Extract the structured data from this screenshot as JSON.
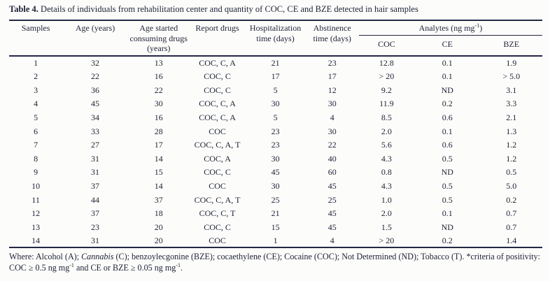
{
  "title": {
    "label": "Table 4.",
    "text": " Details of individuals from rehabilitation center and quantity of COC, CE and BZE detected in hair samples"
  },
  "table": {
    "headers": {
      "samples": "Samples",
      "age": "Age (years)",
      "age_started": "Age started consuming drugs (years)",
      "report_drugs": "Report drugs",
      "hospitalization": "Hospitalization time (days)",
      "abstinence": "Abstinence time (days)",
      "analytes_group_prefix": "Analytes (ng mg",
      "analytes_sup": "-1",
      "analytes_group_suffix": ")",
      "coc": "COC",
      "ce": "CE",
      "bze": "BZE"
    },
    "rows": [
      [
        "1",
        "32",
        "13",
        "COC, C, A",
        "21",
        "23",
        "12.8",
        "0.1",
        "1.9"
      ],
      [
        "2",
        "22",
        "16",
        "COC, C",
        "17",
        "17",
        "> 20",
        "0.1",
        "> 5.0"
      ],
      [
        "3",
        "36",
        "22",
        "COC, C",
        "5",
        "12",
        "9.2",
        "ND",
        "3.1"
      ],
      [
        "4",
        "45",
        "30",
        "COC, C, A",
        "30",
        "30",
        "11.9",
        "0.2",
        "3.3"
      ],
      [
        "5",
        "34",
        "16",
        "COC, C, A",
        "5",
        "4",
        "8.5",
        "0.6",
        "2.1"
      ],
      [
        "6",
        "33",
        "28",
        "COC",
        "23",
        "30",
        "2.0",
        "0.1",
        "1.3"
      ],
      [
        "7",
        "27",
        "17",
        "COC, C, A, T",
        "23",
        "22",
        "5.6",
        "0.6",
        "1.2"
      ],
      [
        "8",
        "31",
        "14",
        "COC, A",
        "30",
        "40",
        "4.3",
        "0.5",
        "1.2"
      ],
      [
        "9",
        "31",
        "15",
        "COC, C",
        "45",
        "60",
        "0.8",
        "ND",
        "0.5"
      ],
      [
        "10",
        "37",
        "14",
        "COC",
        "30",
        "45",
        "4.3",
        "0.5",
        "5.0"
      ],
      [
        "11",
        "44",
        "37",
        "COC, C, A, T",
        "25",
        "25",
        "1.0",
        "0.5",
        "0.2"
      ],
      [
        "12",
        "37",
        "18",
        "COC, C, T",
        "21",
        "45",
        "2.0",
        "0.1",
        "0.7"
      ],
      [
        "13",
        "23",
        "20",
        "COC, C",
        "15",
        "45",
        "1.5",
        "ND",
        "0.7"
      ],
      [
        "14",
        "31",
        "20",
        "COC",
        "1",
        "4",
        "> 20",
        "0.2",
        "1.4"
      ]
    ]
  },
  "footnote": {
    "part1": "Where: Alcohol (A); ",
    "cannabis_italic": "Cannabis",
    "part2": " (C); benzoylecgonine (BZE); cocaethylene (CE); Cocaine (COC); Not Determined (ND); Tobacco (T). *criteria of positivity: COC ≥ 0.5 ng mg",
    "sup1": "-1",
    "part3": " and CE or BZE ≥ 0.05 ng mg",
    "sup2": "-1",
    "part4": "."
  },
  "colors": {
    "text": "#1d2136",
    "rule": "#242845",
    "background": "#fcfcfa"
  }
}
